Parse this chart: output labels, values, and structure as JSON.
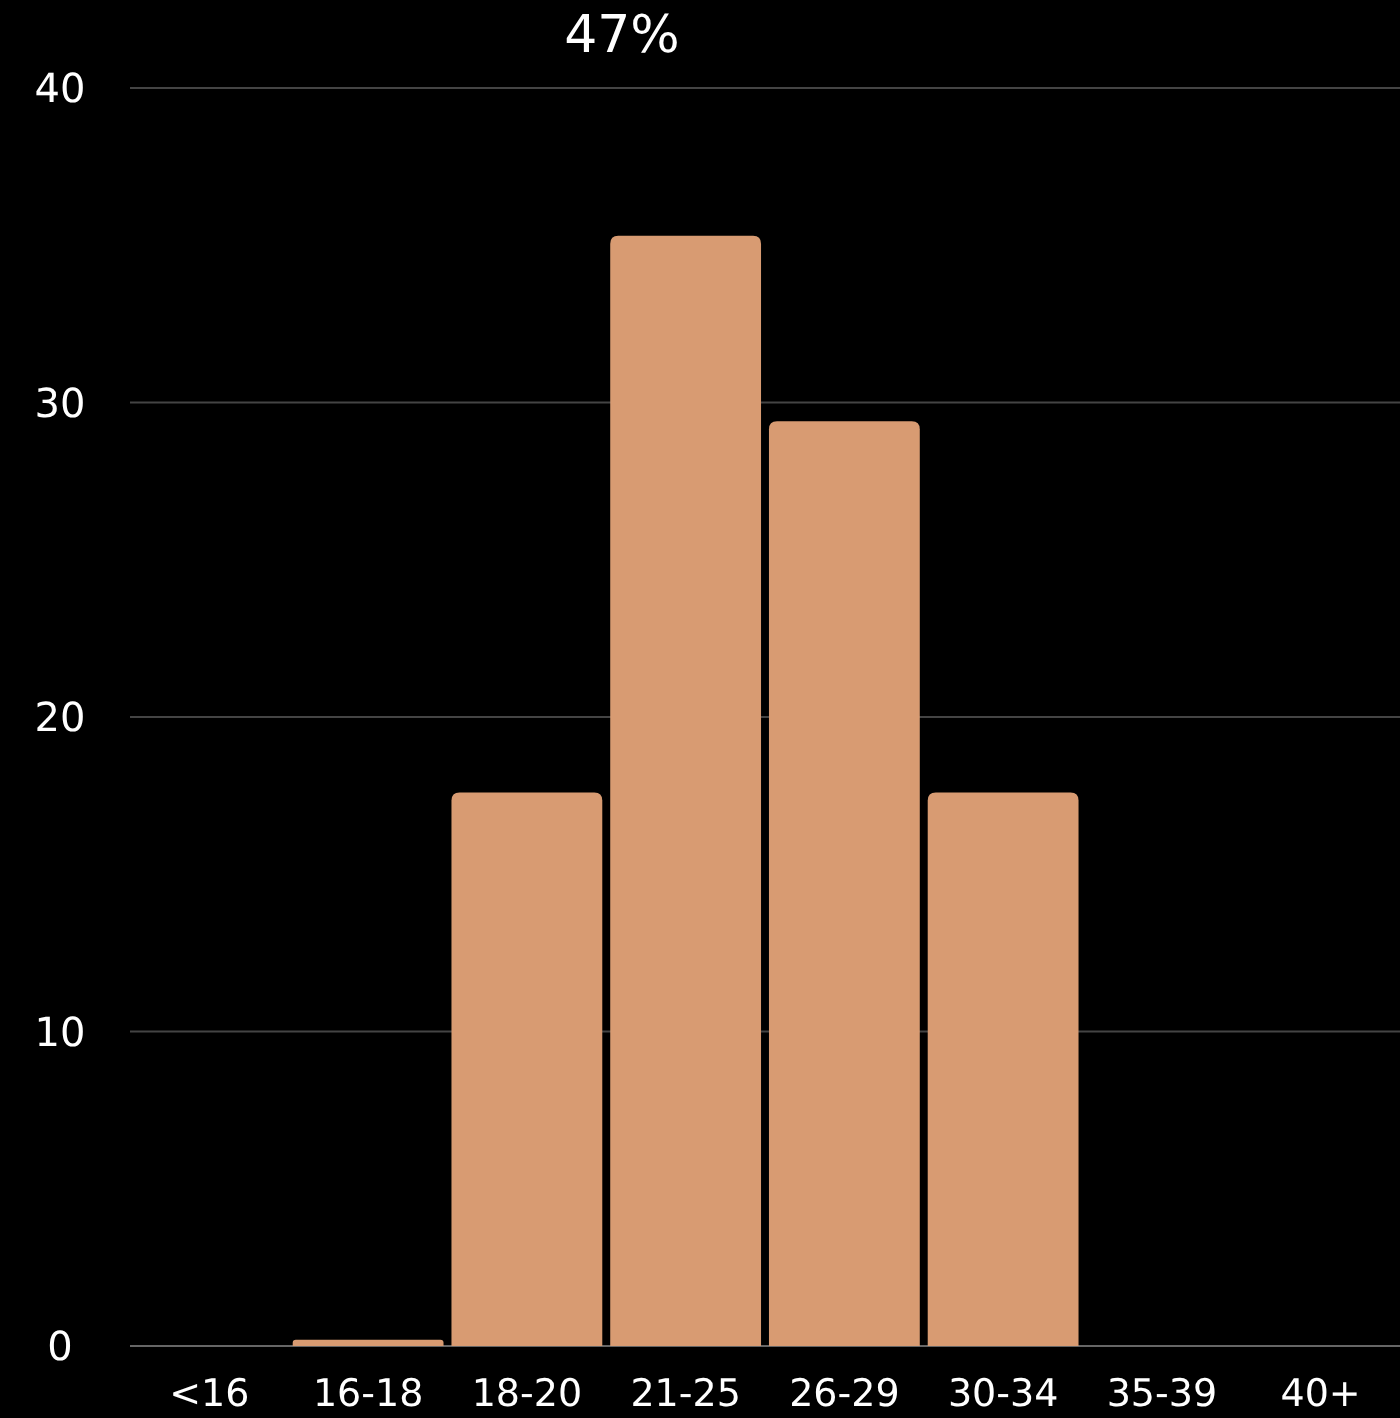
{
  "chart_data": {
    "type": "bar",
    "categories": [
      "<16",
      "16-18",
      "18-20",
      "21-25",
      "26-29",
      "30-34",
      "35-39",
      "40+"
    ],
    "values": [
      0,
      0.2,
      17.6,
      35.3,
      29.4,
      17.6,
      0,
      0
    ],
    "color": "#d89b72",
    "ylim": [
      0,
      40
    ],
    "yticks": [
      0,
      10,
      20,
      30,
      40
    ],
    "grid": "y",
    "annotations": [
      "47%"
    ]
  }
}
